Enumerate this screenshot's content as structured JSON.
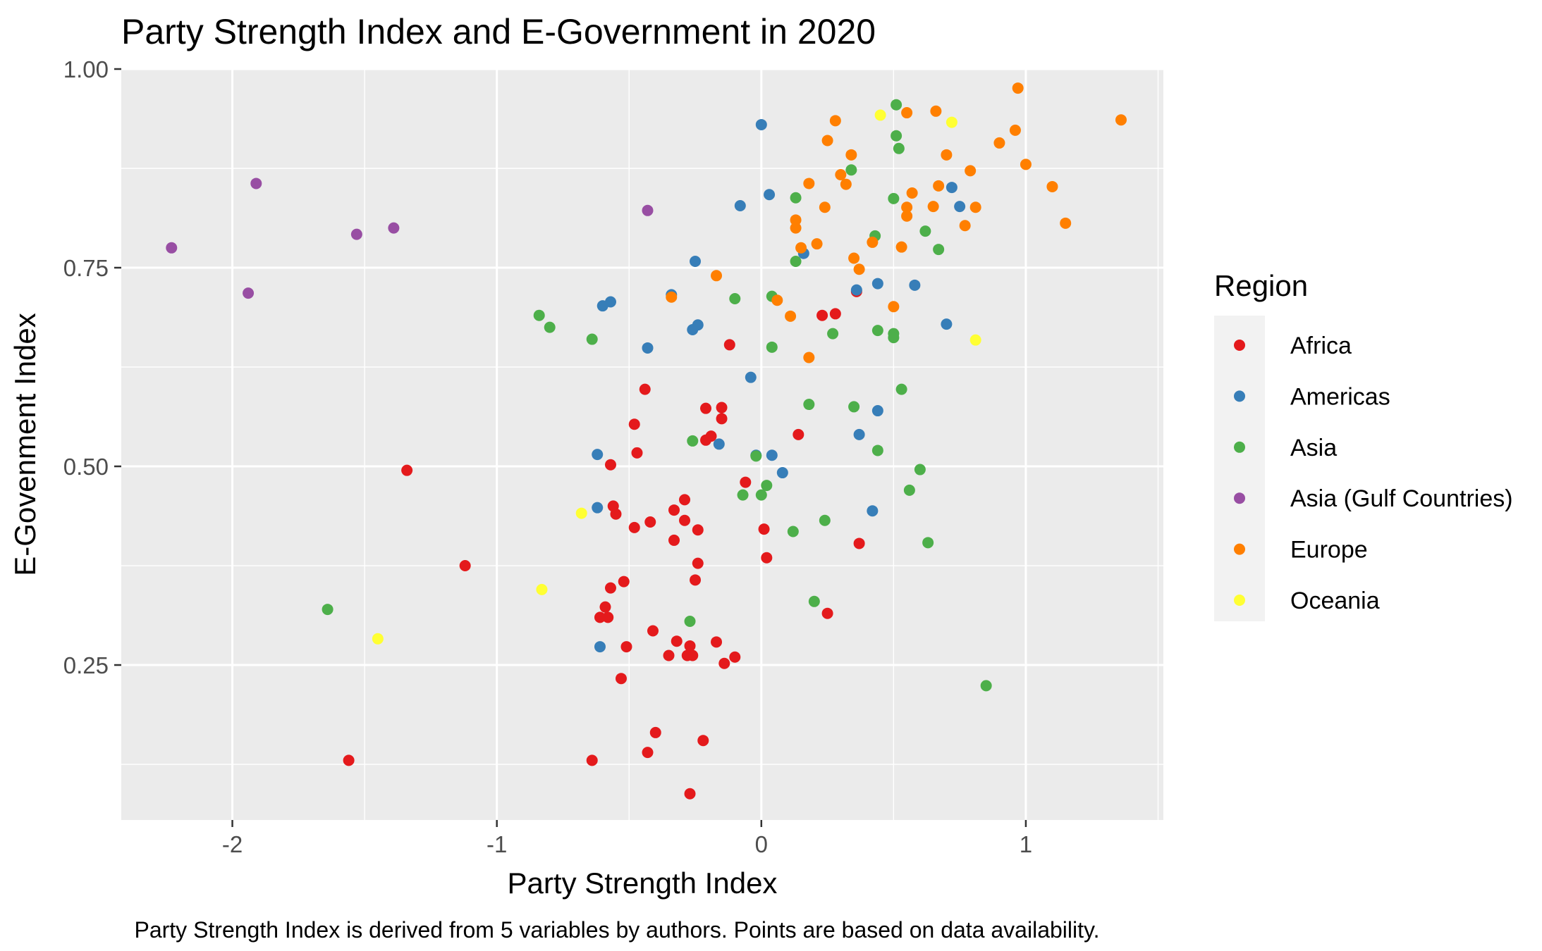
{
  "chart_data": {
    "type": "scatter",
    "title": "Party Strength Index and E-Government in 2020",
    "xlabel": "Party Strength Index",
    "ylabel": "E-Govenment Index",
    "caption": "Party Strength Index is derived from 5 variables by authors. Points are based on data availability.",
    "xlim": [
      -2.42,
      1.52
    ],
    "ylim": [
      0.055,
      1.0
    ],
    "x_ticks": [
      -2,
      -1,
      0,
      1
    ],
    "y_ticks": [
      0.25,
      0.5,
      0.75,
      1.0
    ],
    "x_tick_labels": [
      "-2",
      "-1",
      "0",
      "1"
    ],
    "y_tick_labels": [
      "0.25",
      "0.50",
      "0.75",
      "1.00"
    ],
    "background": "#ebebeb",
    "grid": true,
    "legend": {
      "title": "Region",
      "position": "right",
      "entries": [
        "Africa",
        "Americas",
        "Asia",
        "Asia (Gulf Countries)",
        "Europe",
        "Oceania"
      ]
    },
    "series": [
      {
        "name": "Africa",
        "color": "#e41a1c",
        "points": [
          [
            -1.34,
            0.495
          ],
          [
            -1.12,
            0.375
          ],
          [
            -1.56,
            0.13
          ],
          [
            -0.64,
            0.13
          ],
          [
            -0.44,
            0.597
          ],
          [
            -0.48,
            0.553
          ],
          [
            -0.47,
            0.517
          ],
          [
            -0.57,
            0.502
          ],
          [
            -0.56,
            0.45
          ],
          [
            -0.55,
            0.44
          ],
          [
            -0.48,
            0.423
          ],
          [
            -0.42,
            0.43
          ],
          [
            -0.33,
            0.445
          ],
          [
            -0.33,
            0.407
          ],
          [
            -0.29,
            0.458
          ],
          [
            -0.29,
            0.432
          ],
          [
            -0.24,
            0.42
          ],
          [
            -0.24,
            0.378
          ],
          [
            -0.25,
            0.357
          ],
          [
            -0.52,
            0.355
          ],
          [
            -0.57,
            0.347
          ],
          [
            -0.59,
            0.323
          ],
          [
            -0.61,
            0.31
          ],
          [
            -0.58,
            0.31
          ],
          [
            -0.41,
            0.293
          ],
          [
            -0.32,
            0.28
          ],
          [
            -0.27,
            0.274
          ],
          [
            -0.28,
            0.262
          ],
          [
            -0.26,
            0.262
          ],
          [
            -0.35,
            0.262
          ],
          [
            -0.51,
            0.273
          ],
          [
            -0.53,
            0.233
          ],
          [
            -0.17,
            0.279
          ],
          [
            -0.1,
            0.26
          ],
          [
            -0.14,
            0.252
          ],
          [
            -0.4,
            0.165
          ],
          [
            -0.43,
            0.14
          ],
          [
            -0.22,
            0.155
          ],
          [
            -0.27,
            0.088
          ],
          [
            -0.12,
            0.653
          ],
          [
            -0.21,
            0.573
          ],
          [
            -0.15,
            0.574
          ],
          [
            -0.15,
            0.56
          ],
          [
            -0.19,
            0.538
          ],
          [
            -0.21,
            0.533
          ],
          [
            -0.06,
            0.48
          ],
          [
            0.01,
            0.421
          ],
          [
            0.02,
            0.385
          ],
          [
            0.14,
            0.54
          ],
          [
            0.23,
            0.69
          ],
          [
            0.28,
            0.692
          ],
          [
            0.36,
            0.72
          ],
          [
            0.25,
            0.315
          ],
          [
            0.37,
            0.403
          ]
        ]
      },
      {
        "name": "Americas",
        "color": "#377eb8",
        "points": [
          [
            0.0,
            0.93
          ],
          [
            -0.08,
            0.828
          ],
          [
            0.03,
            0.842
          ],
          [
            -0.6,
            0.702
          ],
          [
            -0.57,
            0.707
          ],
          [
            -0.43,
            0.649
          ],
          [
            -0.34,
            0.716
          ],
          [
            -0.25,
            0.758
          ],
          [
            -0.26,
            0.672
          ],
          [
            -0.24,
            0.678
          ],
          [
            -0.04,
            0.612
          ],
          [
            -0.62,
            0.515
          ],
          [
            -0.62,
            0.448
          ],
          [
            -0.61,
            0.273
          ],
          [
            -0.16,
            0.528
          ],
          [
            -0.02,
            0.514
          ],
          [
            0.04,
            0.514
          ],
          [
            0.08,
            0.492
          ],
          [
            0.16,
            0.768
          ],
          [
            0.36,
            0.722
          ],
          [
            0.44,
            0.73
          ],
          [
            0.44,
            0.57
          ],
          [
            0.37,
            0.54
          ],
          [
            0.42,
            0.444
          ],
          [
            0.58,
            0.728
          ],
          [
            0.7,
            0.679
          ],
          [
            0.72,
            0.851
          ],
          [
            0.75,
            0.827
          ]
        ]
      },
      {
        "name": "Asia",
        "color": "#4daf4a",
        "points": [
          [
            -1.64,
            0.32
          ],
          [
            -0.84,
            0.69
          ],
          [
            -0.8,
            0.675
          ],
          [
            -0.64,
            0.66
          ],
          [
            -0.27,
            0.305
          ],
          [
            -0.26,
            0.532
          ],
          [
            -0.1,
            0.711
          ],
          [
            -0.07,
            0.464
          ],
          [
            -0.02,
            0.513
          ],
          [
            0.0,
            0.464
          ],
          [
            0.02,
            0.476
          ],
          [
            0.04,
            0.714
          ],
          [
            0.04,
            0.65
          ],
          [
            0.12,
            0.418
          ],
          [
            0.13,
            0.838
          ],
          [
            0.13,
            0.758
          ],
          [
            0.18,
            0.578
          ],
          [
            0.2,
            0.33
          ],
          [
            0.24,
            0.432
          ],
          [
            0.27,
            0.667
          ],
          [
            0.34,
            0.873
          ],
          [
            0.35,
            0.575
          ],
          [
            0.43,
            0.79
          ],
          [
            0.44,
            0.671
          ],
          [
            0.44,
            0.52
          ],
          [
            0.5,
            0.837
          ],
          [
            0.5,
            0.667
          ],
          [
            0.5,
            0.662
          ],
          [
            0.51,
            0.955
          ],
          [
            0.51,
            0.916
          ],
          [
            0.52,
            0.9
          ],
          [
            0.53,
            0.597
          ],
          [
            0.56,
            0.47
          ],
          [
            0.6,
            0.496
          ],
          [
            0.62,
            0.796
          ],
          [
            0.63,
            0.404
          ],
          [
            0.67,
            0.773
          ],
          [
            0.85,
            0.224
          ]
        ]
      },
      {
        "name": "Asia (Gulf Countries)",
        "color": "#984ea3",
        "points": [
          [
            -2.23,
            0.775
          ],
          [
            -1.94,
            0.718
          ],
          [
            -1.91,
            0.856
          ],
          [
            -1.53,
            0.792
          ],
          [
            -1.39,
            0.8
          ],
          [
            -0.43,
            0.822
          ]
        ]
      },
      {
        "name": "Europe",
        "color": "#ff7f00",
        "points": [
          [
            -0.34,
            0.713
          ],
          [
            -0.17,
            0.74
          ],
          [
            0.06,
            0.709
          ],
          [
            0.11,
            0.689
          ],
          [
            0.13,
            0.81
          ],
          [
            0.13,
            0.8
          ],
          [
            0.15,
            0.775
          ],
          [
            0.18,
            0.856
          ],
          [
            0.18,
            0.637
          ],
          [
            0.21,
            0.78
          ],
          [
            0.24,
            0.826
          ],
          [
            0.25,
            0.91
          ],
          [
            0.28,
            0.935
          ],
          [
            0.3,
            0.867
          ],
          [
            0.32,
            0.855
          ],
          [
            0.34,
            0.892
          ],
          [
            0.35,
            0.762
          ],
          [
            0.37,
            0.748
          ],
          [
            0.42,
            0.782
          ],
          [
            0.5,
            0.701
          ],
          [
            0.53,
            0.776
          ],
          [
            0.55,
            0.945
          ],
          [
            0.55,
            0.826
          ],
          [
            0.55,
            0.815
          ],
          [
            0.57,
            0.844
          ],
          [
            0.65,
            0.827
          ],
          [
            0.66,
            0.947
          ],
          [
            0.67,
            0.853
          ],
          [
            0.7,
            0.892
          ],
          [
            0.77,
            0.803
          ],
          [
            0.79,
            0.872
          ],
          [
            0.81,
            0.826
          ],
          [
            0.9,
            0.907
          ],
          [
            0.96,
            0.923
          ],
          [
            0.97,
            0.976
          ],
          [
            1.0,
            0.88
          ],
          [
            1.1,
            0.852
          ],
          [
            1.15,
            0.806
          ],
          [
            1.36,
            0.936
          ]
        ]
      },
      {
        "name": "Oceania",
        "color": "#ffff33",
        "points": [
          [
            -1.45,
            0.283
          ],
          [
            -0.83,
            0.345
          ],
          [
            -0.68,
            0.441
          ],
          [
            0.45,
            0.942
          ],
          [
            0.72,
            0.933
          ],
          [
            0.81,
            0.659
          ]
        ]
      }
    ]
  }
}
